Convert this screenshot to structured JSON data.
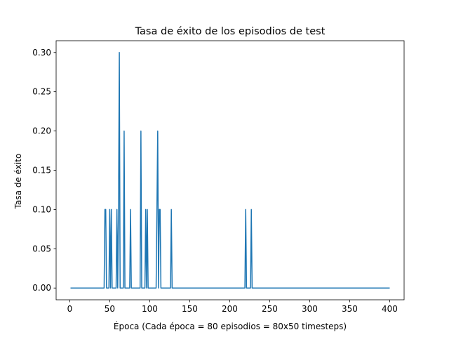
{
  "chart_data": {
    "type": "line",
    "title": "Tasa de éxito de los episodios de test",
    "xlabel": "Época (Cada época = 80 episodios = 80x50 timesteps)",
    "ylabel": "Tasa de éxito",
    "xlim": [
      -17,
      418
    ],
    "ylim": [
      -0.015,
      0.315
    ],
    "xticks": [
      0,
      50,
      100,
      150,
      200,
      250,
      300,
      350,
      400
    ],
    "xtick_labels": [
      "0",
      "50",
      "100",
      "150",
      "200",
      "250",
      "300",
      "350",
      "400"
    ],
    "yticks": [
      0.0,
      0.05,
      0.1,
      0.15,
      0.2,
      0.25,
      0.3
    ],
    "ytick_labels": [
      "0.00",
      "0.05",
      "0.10",
      "0.15",
      "0.20",
      "0.25",
      "0.30"
    ],
    "grid": false,
    "series": [
      {
        "color": "#1f77b4",
        "x": [
          1,
          43,
          44,
          45,
          46,
          49,
          50,
          51,
          52,
          53,
          58,
          59,
          60,
          61,
          62,
          63,
          64,
          67,
          68,
          69,
          75,
          76,
          77,
          88,
          89,
          90,
          94,
          95,
          96,
          97,
          98,
          99,
          108,
          109,
          110,
          111,
          112,
          113,
          114,
          126,
          127,
          128,
          219,
          220,
          221,
          226,
          227,
          228,
          400
        ],
        "y": [
          0,
          0,
          0.1,
          0.1,
          0,
          0,
          0.1,
          0,
          0.1,
          0,
          0,
          0.1,
          0,
          0.1,
          0.3,
          0,
          0,
          0,
          0.2,
          0,
          0,
          0.1,
          0,
          0,
          0.2,
          0,
          0,
          0.1,
          0,
          0.1,
          0,
          0,
          0,
          0.1,
          0.2,
          0,
          0.1,
          0.1,
          0,
          0,
          0.1,
          0,
          0,
          0.1,
          0,
          0,
          0.1,
          0,
          0
        ]
      }
    ]
  }
}
